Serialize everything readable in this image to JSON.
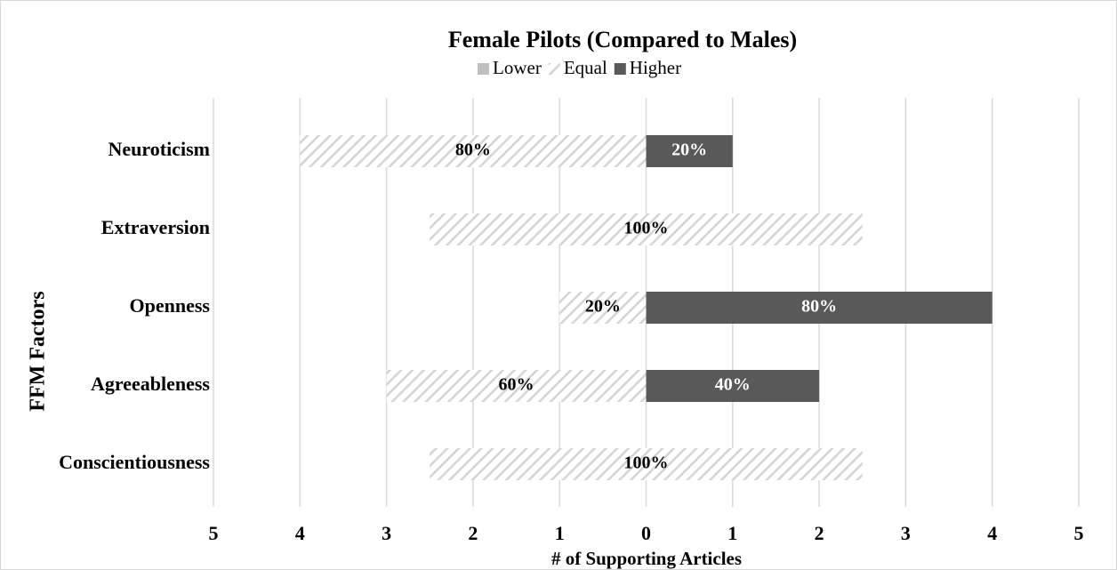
{
  "chart_data": {
    "type": "bar",
    "orientation": "horizontal",
    "title": "Female Pilots (Compared to Males)",
    "xlabel": "# of Supporting Articles",
    "ylabel": "FFM Factors",
    "categories": [
      "Neuroticism",
      "Extraversion",
      "Openness",
      "Agreeableness",
      "Conscientiousness"
    ],
    "series": [
      {
        "name": "Lower",
        "color": "#bfbfbf",
        "values": [
          0,
          0,
          0,
          0,
          0
        ]
      },
      {
        "name": "Equal",
        "color": "#d4d4d4",
        "pattern": "hatch",
        "values": [
          4,
          5,
          1,
          3,
          5
        ],
        "value_labels": [
          "80%",
          "100%",
          "20%",
          "60%",
          "100%"
        ]
      },
      {
        "name": "Higher",
        "color": "#595959",
        "values": [
          1,
          0,
          4,
          2,
          0
        ],
        "value_labels": [
          "20%",
          null,
          "80%",
          "40%",
          null
        ]
      }
    ],
    "xlim": [
      -5,
      5
    ],
    "xticks": [
      {
        "value": -5,
        "label": "5"
      },
      {
        "value": -4,
        "label": "4"
      },
      {
        "value": -3,
        "label": "3"
      },
      {
        "value": -2,
        "label": "2"
      },
      {
        "value": -1,
        "label": "1"
      },
      0,
      1,
      2,
      3,
      4,
      5
    ],
    "grid": true,
    "legend": "top"
  }
}
